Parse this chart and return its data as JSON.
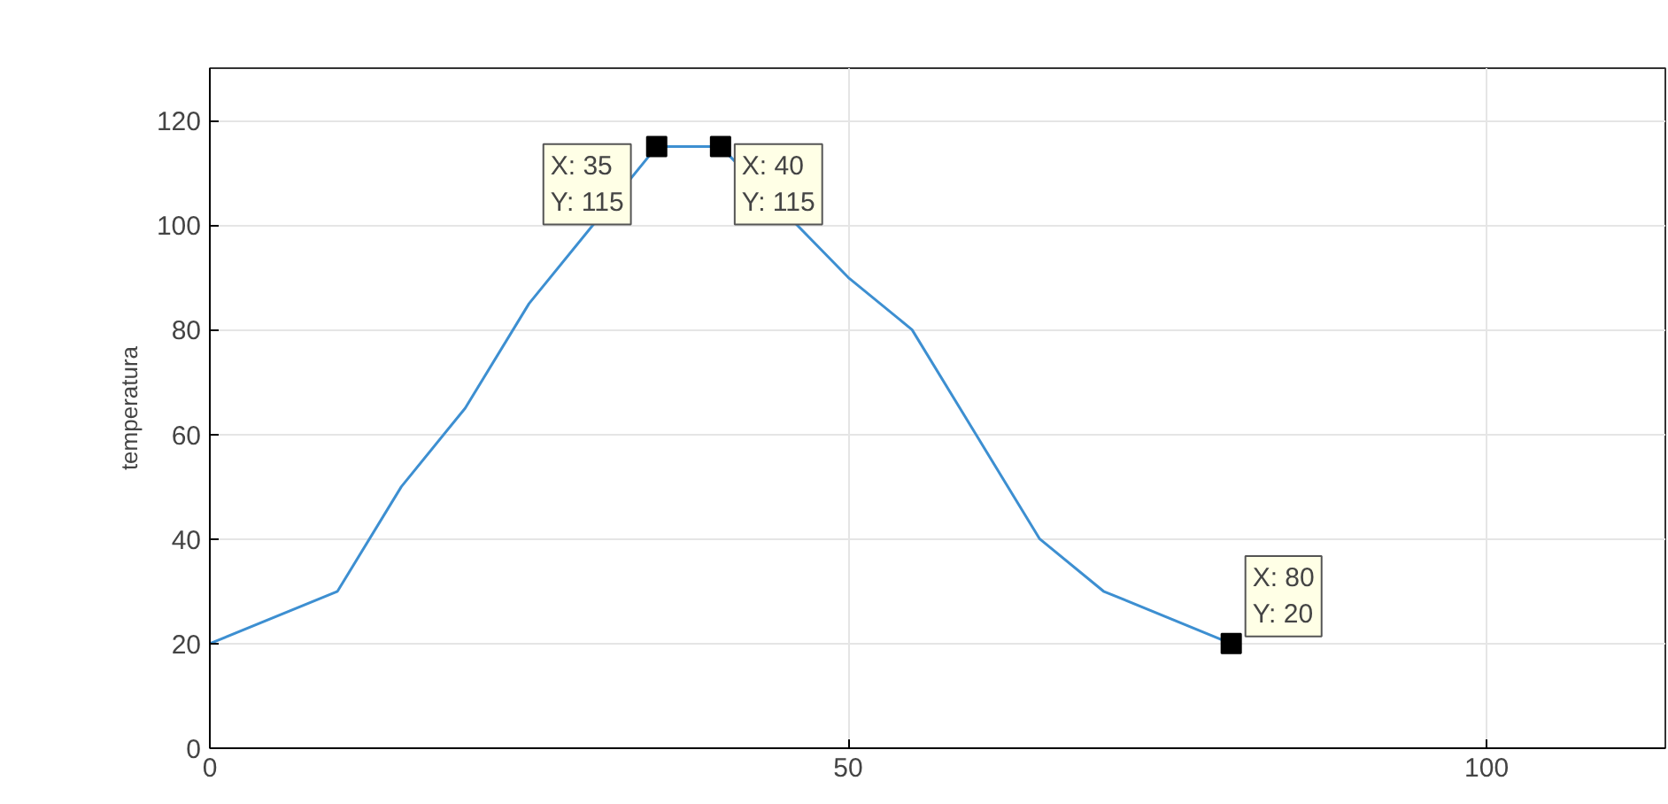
{
  "chart_data": {
    "type": "line",
    "ylabel": "temperatura",
    "x": [
      0,
      10,
      15,
      20,
      25,
      30,
      35,
      40,
      50,
      55,
      60,
      65,
      70,
      80
    ],
    "series": [
      {
        "color": "#3d8fd1",
        "values": [
          20,
          30,
          50,
          65,
          85,
          100,
          115,
          115,
          90,
          80,
          60,
          40,
          30,
          20
        ]
      }
    ],
    "xlim": [
      0,
      114
    ],
    "ylim": [
      0,
      130
    ],
    "xticks": [
      0,
      50,
      100
    ],
    "yticks": [
      0,
      20,
      40,
      60,
      80,
      100,
      120
    ],
    "grid": true,
    "line_style": "solid",
    "annotations": [
      {
        "text": "X: 35\nY: 115",
        "x": 35,
        "y": 115
      },
      {
        "text": "X: 40\nY: 115",
        "x": 40,
        "y": 115
      },
      {
        "text": "X: 80\nY: 20",
        "x": 80,
        "y": 20
      }
    ]
  }
}
